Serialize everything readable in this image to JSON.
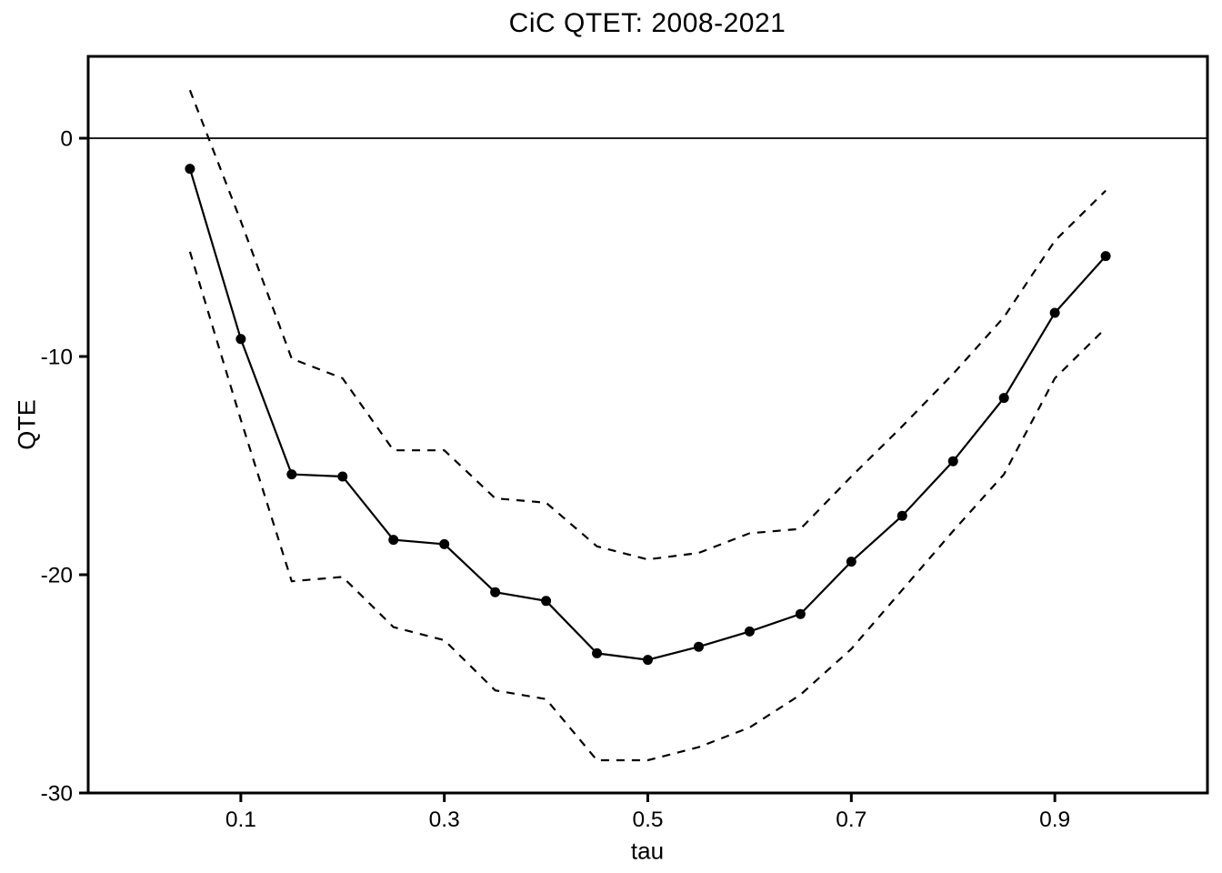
{
  "title": "CiC QTET: 2008-2021",
  "axes": {
    "x_label": "tau",
    "y_label": "QTE"
  },
  "colors": {
    "foreground": "#000000",
    "background": "#ffffff"
  },
  "chart_data": {
    "type": "line",
    "title": "CiC QTET: 2008-2021",
    "xlabel": "tau",
    "ylabel": "QTE",
    "xlim": [
      -0.05,
      1.05
    ],
    "ylim": [
      -30,
      3.75
    ],
    "grid": false,
    "zero_line": true,
    "legend": "none",
    "x_ticks": [
      {
        "v": 0.1,
        "label": "0.1"
      },
      {
        "v": 0.3,
        "label": "0.3"
      },
      {
        "v": 0.5,
        "label": "0.5"
      },
      {
        "v": 0.7,
        "label": "0.7"
      },
      {
        "v": 0.9,
        "label": "0.9"
      }
    ],
    "y_ticks": [
      {
        "v": 0,
        "label": "0"
      },
      {
        "v": -10,
        "label": "-10"
      },
      {
        "v": -20,
        "label": "-20"
      },
      {
        "v": -30,
        "label": "-30"
      }
    ],
    "x": [
      0.05,
      0.1,
      0.15,
      0.2,
      0.25,
      0.3,
      0.35,
      0.4,
      0.45,
      0.5,
      0.55,
      0.6,
      0.65,
      0.7,
      0.75,
      0.8,
      0.85,
      0.9,
      0.95
    ],
    "series": [
      {
        "name": "qte-point-estimate",
        "style": "solid",
        "points": true,
        "color": "#000000",
        "values": [
          -1.4,
          -9.2,
          -15.4,
          -15.5,
          -18.4,
          -18.6,
          -20.8,
          -21.2,
          -23.6,
          -23.9,
          -23.3,
          -22.6,
          -21.8,
          -19.4,
          -17.3,
          -14.8,
          -11.9,
          -8.0,
          -5.4
        ]
      },
      {
        "name": "upper-confidence-band",
        "style": "dashed",
        "points": false,
        "color": "#000000",
        "values": [
          2.2,
          -3.8,
          -10.1,
          -11.0,
          -14.3,
          -14.3,
          -16.5,
          -16.7,
          -18.7,
          -19.3,
          -19.0,
          -18.1,
          -17.9,
          -15.5,
          -13.2,
          -10.8,
          -8.2,
          -4.7,
          -2.4
        ]
      },
      {
        "name": "lower-confidence-band",
        "style": "dashed",
        "points": false,
        "color": "#000000",
        "values": [
          -5.2,
          -12.9,
          -20.3,
          -20.1,
          -22.4,
          -23.0,
          -25.3,
          -25.7,
          -28.5,
          -28.5,
          -27.9,
          -27.0,
          -25.5,
          -23.4,
          -20.7,
          -18.0,
          -15.4,
          -11.0,
          -8.7
        ]
      }
    ]
  }
}
